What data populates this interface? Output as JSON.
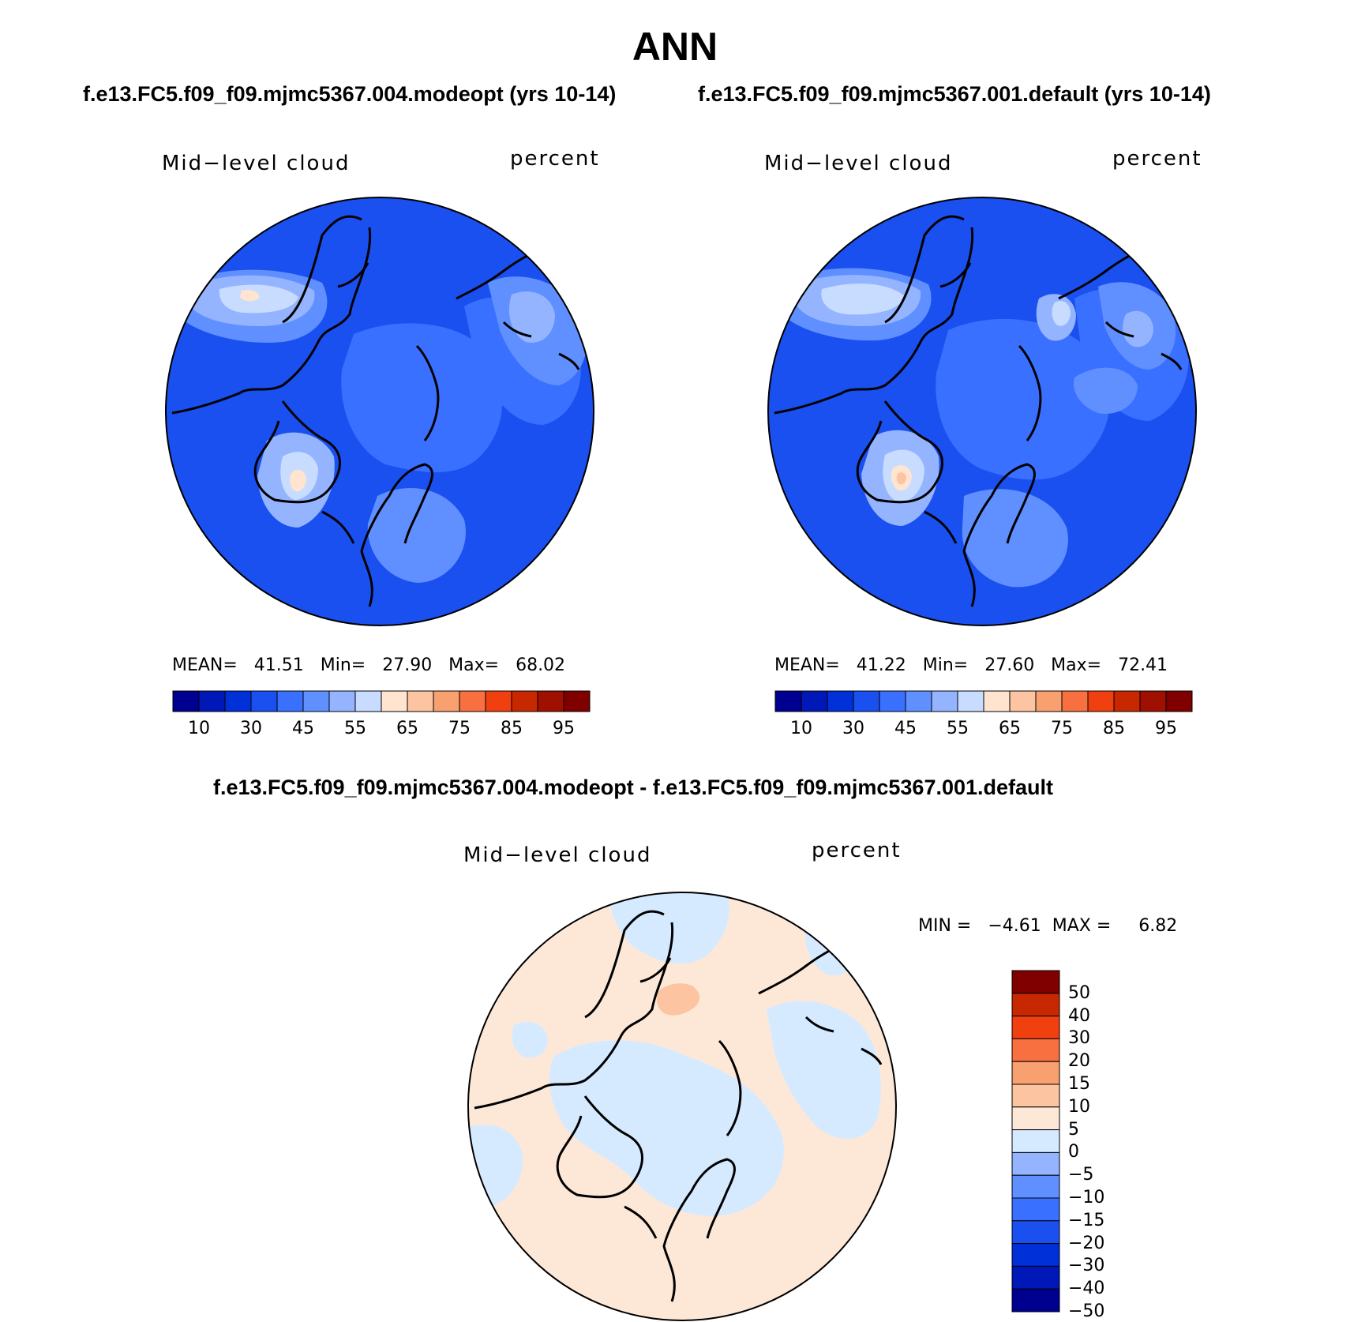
{
  "title": "ANN",
  "subtitles": {
    "left": "f.e13.FC5.f09_f09.mjmc5367.004.modeopt (yrs 10-14)",
    "right": "f.e13.FC5.f09_f09.mjmc5367.001.default (yrs 10-14)",
    "diff": "f.e13.FC5.f09_f09.mjmc5367.004.modeopt - f.e13.FC5.f09_f09.mjmc5367.001.default"
  },
  "panels": [
    {
      "variable": "Mid−level cloud",
      "units": "percent",
      "stats": "MEAN=   41.51   Min=   27.90   Max=   68.02"
    },
    {
      "variable": "Mid−level cloud",
      "units": "percent",
      "stats": "MEAN=   41.22   Min=   27.60   Max=   72.41"
    },
    {
      "variable": "Mid−level cloud",
      "units": "percent",
      "stats": "MIN =   −4.61  MAX =     6.82"
    }
  ],
  "colorbar_main": {
    "colors": [
      "#000090",
      "#0018b8",
      "#0030d8",
      "#1a50f0",
      "#3a70ff",
      "#6090ff",
      "#94b4ff",
      "#c8dcff",
      "#ffe4d0",
      "#fcc4a0",
      "#f8a070",
      "#f87040",
      "#f04010",
      "#c82800",
      "#a01000",
      "#800000"
    ],
    "ticks": [
      "10",
      "30",
      "45",
      "55",
      "65",
      "75",
      "85",
      "95"
    ]
  },
  "colorbar_diff": {
    "colors": [
      "#000090",
      "#0018b8",
      "#0030d8",
      "#1a50f0",
      "#3a70ff",
      "#6090ff",
      "#94b4ff",
      "#d6eaff",
      "#fde8d8",
      "#fcc4a0",
      "#f8a070",
      "#f87040",
      "#f04010",
      "#c82800",
      "#800000"
    ],
    "ticks": [
      "50",
      "40",
      "30",
      "20",
      "15",
      "10",
      "5",
      "0",
      "−5",
      "−10",
      "−15",
      "−20",
      "−30",
      "−40",
      "−50"
    ]
  }
}
